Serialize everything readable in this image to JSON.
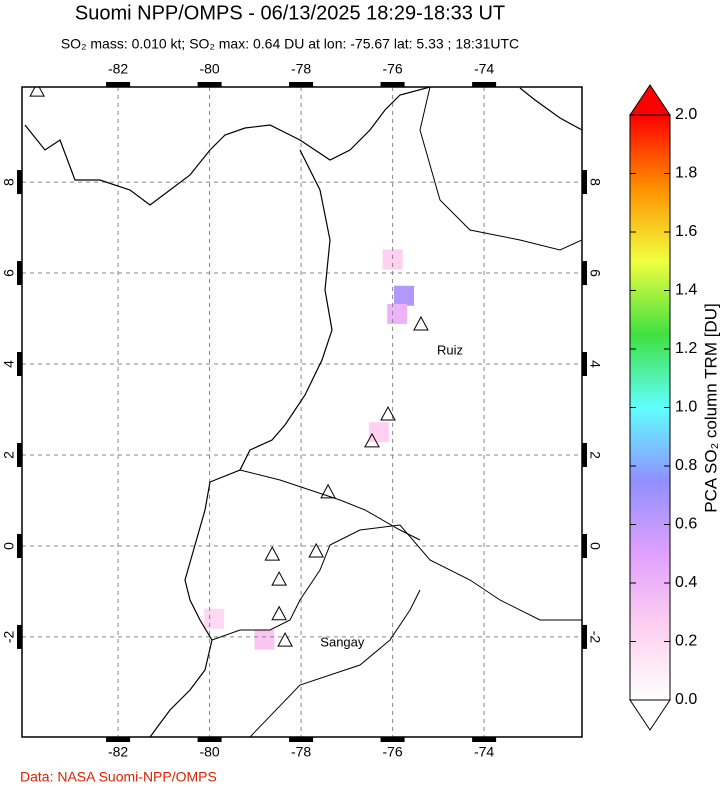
{
  "chart_data": {
    "type": "map",
    "title": "Suomi NPP/OMPS - 06/13/2025 18:29-18:33 UT",
    "subtitle": "SO₂ mass: 0.010 kt; SO₂ max: 0.64 DU at lon: -75.67 lat: 5.33 ; 18:31UTC",
    "xlim": [
      -84.1,
      -71.86
    ],
    "ylim": [
      -4.2,
      10.09
    ],
    "xticks": [
      -82,
      -80,
      -78,
      -76,
      -74
    ],
    "yticks": [
      -2,
      0,
      2,
      4,
      6,
      8
    ],
    "grid": true,
    "pixels": [
      {
        "lon": -75.75,
        "lat": 5.5,
        "value": 0.64
      },
      {
        "lon": -75.9,
        "lat": 5.1,
        "value": 0.4
      },
      {
        "lon": -76.0,
        "lat": 6.3,
        "value": 0.25
      },
      {
        "lon": -76.3,
        "lat": 2.5,
        "value": 0.25
      },
      {
        "lon": -78.8,
        "lat": -2.06,
        "value": 0.3
      },
      {
        "lon": -79.9,
        "lat": -1.6,
        "value": 0.2
      }
    ],
    "volcanoes": [
      {
        "lon": -75.38,
        "lat": 4.88
      },
      {
        "lon": -76.1,
        "lat": 2.9
      },
      {
        "lon": -76.45,
        "lat": 2.31
      },
      {
        "lon": -77.41,
        "lat": 1.19
      },
      {
        "lon": -77.67,
        "lat": -0.11
      },
      {
        "lon": -78.63,
        "lat": -0.18
      },
      {
        "lon": -78.48,
        "lat": -0.73
      },
      {
        "lon": -78.48,
        "lat": -1.49
      },
      {
        "lon": -78.35,
        "lat": -2.07
      },
      {
        "lon": -83.77,
        "lat": 10.02
      }
    ],
    "labels": [
      {
        "text": "Ruiz",
        "lon": -75.03,
        "lat": 4.29
      },
      {
        "text": "Sangay",
        "lon": -77.58,
        "lat": -2.13
      }
    ],
    "colorbar": {
      "label": "PCA SO₂ column TRM [DU]",
      "lim": [
        0,
        2
      ],
      "ticks": [
        {
          "value": 0,
          "label": "0.0"
        },
        0.2,
        0.4,
        0.6,
        0.8,
        {
          "value": 1,
          "label": "1.0"
        },
        1.2,
        1.4,
        1.6,
        1.8,
        {
          "value": 2,
          "label": "2.0"
        }
      ],
      "colormap": [
        "#ffffff",
        "#ffd0f0",
        "#e0a0ff",
        "#9090ff",
        "#60ffff",
        "#40e040",
        "#f0ff40",
        "#ff9000",
        "#ff0000"
      ]
    },
    "credit": "Data: NASA Suomi-NPP/OMPS"
  }
}
